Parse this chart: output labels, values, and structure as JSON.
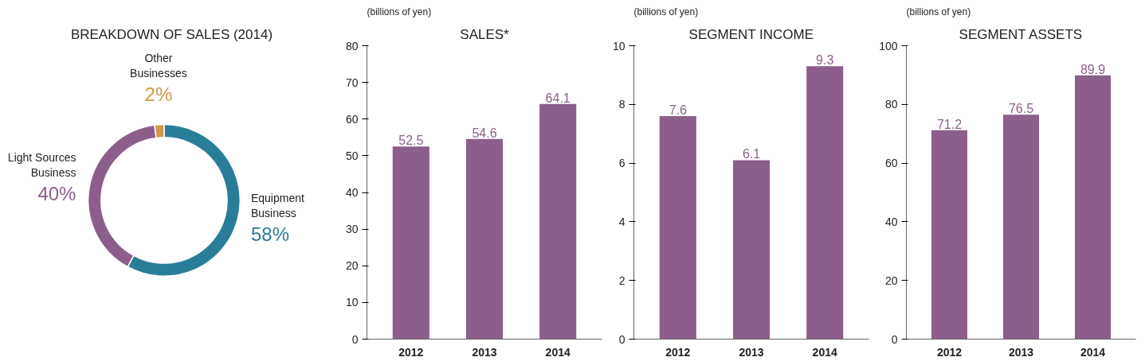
{
  "chart_data": [
    {
      "type": "donut",
      "title": "BREAKDOWN OF SALES (2014)",
      "categories": [
        "Equipment Business",
        "Light Sources Business",
        "Other Businesses"
      ],
      "values": [
        58,
        40,
        2
      ],
      "colors": [
        "#2a7d98",
        "#8c5e8a",
        "#d4964a"
      ],
      "value_labels": [
        "58%",
        "40%",
        "2%"
      ]
    },
    {
      "type": "bar",
      "title": "SALES*",
      "ylabel": "(billions of yen)",
      "categories": [
        "2012",
        "2013",
        "2014"
      ],
      "values": [
        52.5,
        54.6,
        64.1
      ],
      "color": "#8c5e8a",
      "ylim": [
        0,
        80
      ],
      "yticks": [
        0,
        10,
        20,
        30,
        40,
        50,
        60,
        70,
        80
      ],
      "data_labels": true,
      "grid": false
    },
    {
      "type": "bar",
      "title": "SEGMENT INCOME",
      "ylabel": "(billions of yen)",
      "categories": [
        "2012",
        "2013",
        "2014"
      ],
      "values": [
        7.6,
        6.1,
        9.3
      ],
      "color": "#8c5e8a",
      "ylim": [
        0,
        10
      ],
      "yticks": [
        0,
        2,
        4,
        6,
        8,
        10
      ],
      "data_labels": true,
      "grid": false
    },
    {
      "type": "bar",
      "title": "SEGMENT ASSETS",
      "ylabel": "(billions of yen)",
      "categories": [
        "2012",
        "2013",
        "2014"
      ],
      "values": [
        71.2,
        76.5,
        89.9
      ],
      "color": "#8c5e8a",
      "ylim": [
        0,
        100
      ],
      "yticks": [
        0,
        20,
        40,
        60,
        80,
        100
      ],
      "data_labels": true,
      "grid": false
    }
  ]
}
